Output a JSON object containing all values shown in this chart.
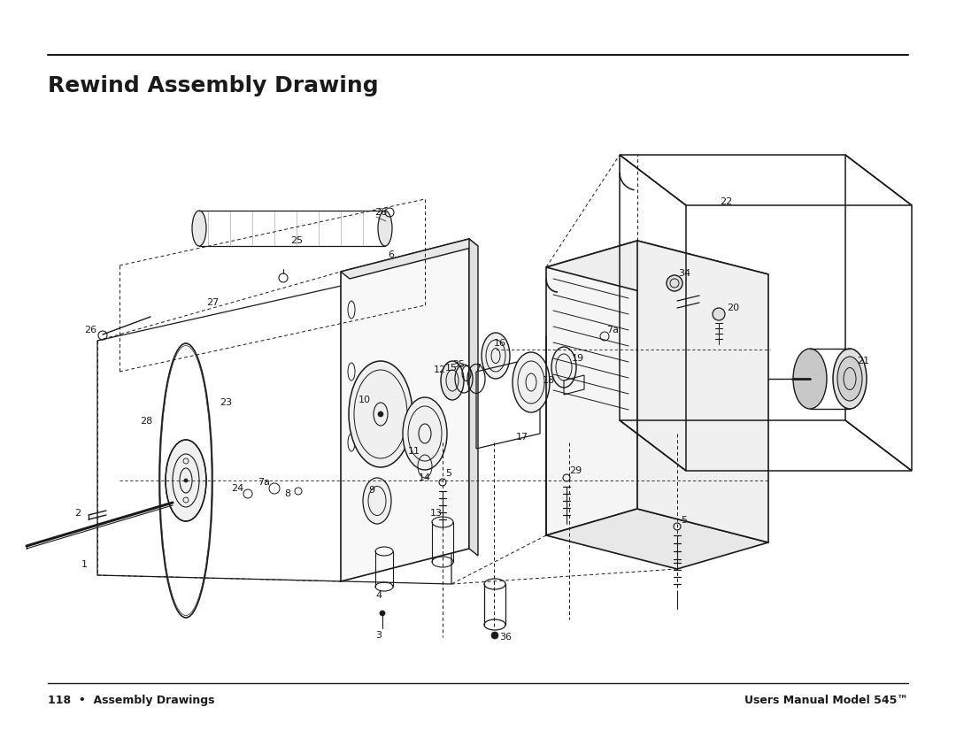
{
  "title": "Rewind Assembly Drawing",
  "footer_left": "118  •  Assembly Drawings",
  "footer_right": "Users Manual Model 545™",
  "bg_color": "#ffffff",
  "line_color": "#1a1a1a",
  "title_fontsize": 18,
  "footer_fontsize": 9,
  "part_label_fontsize": 8.0
}
